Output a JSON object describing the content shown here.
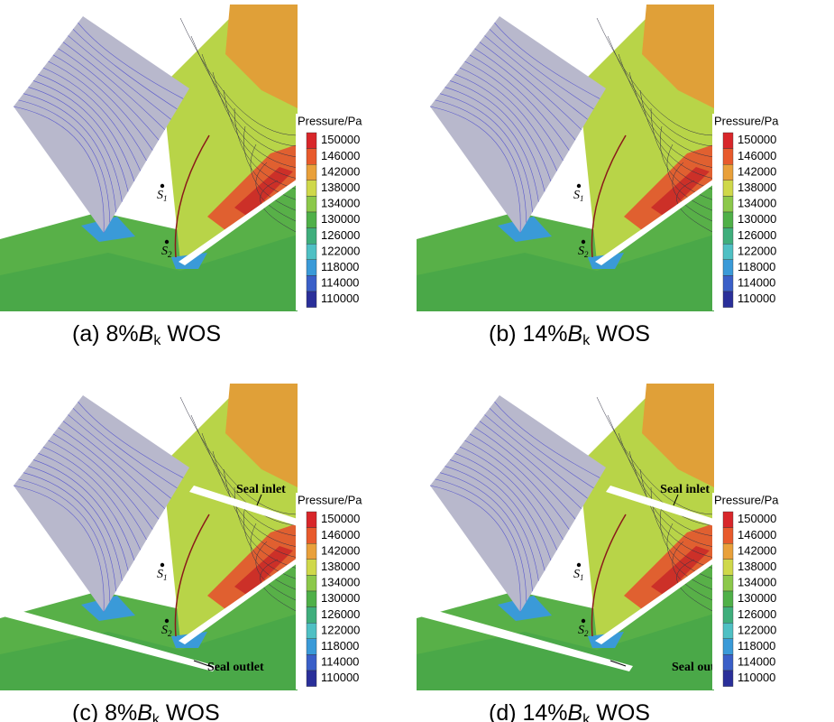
{
  "figure": {
    "legend": {
      "title": "Pressure/Pa",
      "values": [
        150000,
        146000,
        142000,
        138000,
        134000,
        130000,
        126000,
        122000,
        118000,
        114000,
        110000
      ],
      "colors": [
        "#d8262a",
        "#e85a2c",
        "#e9a03a",
        "#cfd84a",
        "#8cc84a",
        "#4fb048",
        "#3fae7c",
        "#4fc0c4",
        "#3a9ad8",
        "#3a5fc8",
        "#2a2f9a"
      ]
    },
    "panels": [
      {
        "caption": {
          "prefix": "(a) 8%",
          "symbol": "B",
          "sub": "k",
          "suffix": "WOS"
        },
        "points": [
          {
            "symbol": "S",
            "index": "1"
          },
          {
            "symbol": "S",
            "index": "2"
          }
        ]
      },
      {
        "caption": {
          "prefix": "(b) 14%",
          "symbol": "B",
          "sub": "k",
          "suffix": "WOS"
        },
        "points": [
          {
            "symbol": "S",
            "index": "1"
          },
          {
            "symbol": "S",
            "index": "2"
          }
        ]
      },
      {
        "caption": {
          "prefix": "(c) 8%",
          "symbol": "B",
          "sub": "k",
          "suffix": "WOS"
        },
        "points": [
          {
            "symbol": "S",
            "index": "1"
          },
          {
            "symbol": "S",
            "index": "2"
          }
        ],
        "labels": [
          "Seal inlet",
          "Seal outlet"
        ]
      },
      {
        "caption": {
          "prefix": "(d) 14%",
          "symbol": "B",
          "sub": "k",
          "suffix": "WOS"
        },
        "points": [
          {
            "symbol": "S",
            "index": "1"
          },
          {
            "symbol": "S",
            "index": "2"
          }
        ],
        "labels": [
          "Seal inlet",
          "Seal outlet"
        ]
      }
    ]
  }
}
